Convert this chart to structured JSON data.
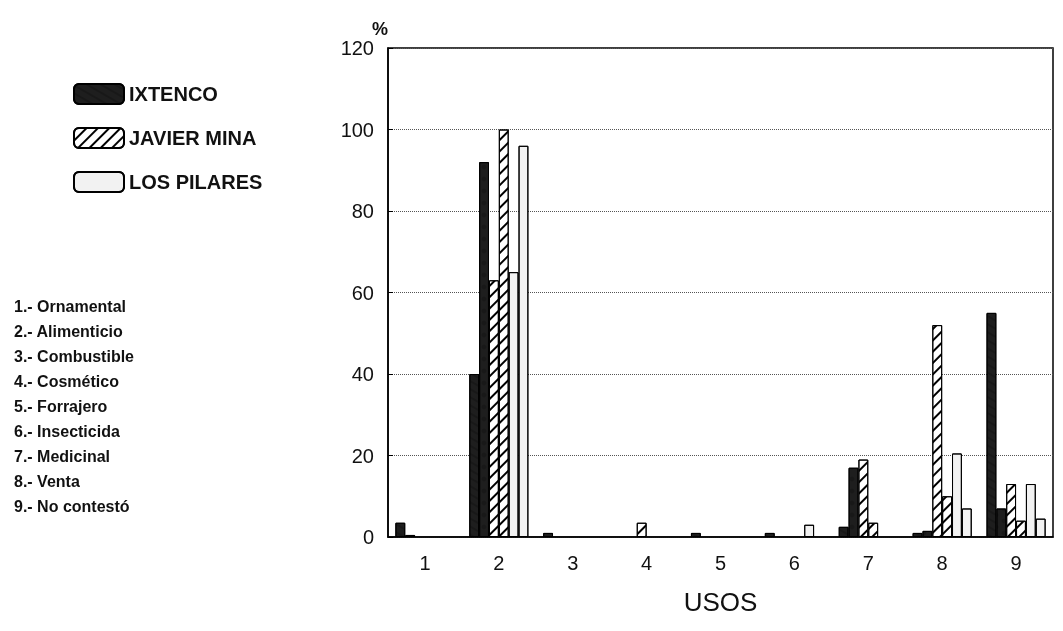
{
  "chart_data": {
    "type": "bar",
    "xlabel": "USOS",
    "ylabel": "%",
    "categories": [
      "1",
      "2",
      "3",
      "4",
      "5",
      "6",
      "7",
      "8",
      "9"
    ],
    "series": [
      {
        "name": "IXTENCO",
        "color": "#1e1e1e",
        "values": [
          3.5,
          40,
          1,
          0,
          1,
          1,
          2.5,
          1,
          55
        ]
      },
      {
        "color": "#1e1e1e",
        "values": [
          0.5,
          92,
          0,
          0,
          0,
          0,
          17,
          1.5,
          7
        ]
      },
      {
        "name": "JAVIER MINA",
        "color": "#ffffff",
        "values": [
          0,
          63,
          0,
          3.5,
          0,
          0,
          19,
          52,
          13
        ]
      },
      {
        "color": "#ffffff",
        "values": [
          0,
          100,
          0,
          0,
          0,
          0,
          3.5,
          10,
          4
        ]
      },
      {
        "name": "LOS PILARES",
        "color": "#f2f2f2",
        "values": [
          0,
          65,
          0,
          0,
          0,
          3,
          0,
          20.5,
          13
        ]
      },
      {
        "color": "#f2f2f2",
        "values": [
          0,
          96,
          0,
          0,
          0,
          0,
          0,
          7,
          4.5
        ]
      }
    ],
    "ylim": [
      0,
      120
    ],
    "yticks": [
      0,
      20,
      40,
      60,
      80,
      100,
      120
    ],
    "grid": "y",
    "legend": "left",
    "annotations": [
      "1.- Ornamental",
      "2.- Alimenticio",
      "3.- Combustible",
      "4.- Cosmético",
      "5.- Forrajero",
      "6.- Insecticida",
      "7.- Medicinal",
      "8.- Venta",
      "9.- No contestó"
    ]
  }
}
